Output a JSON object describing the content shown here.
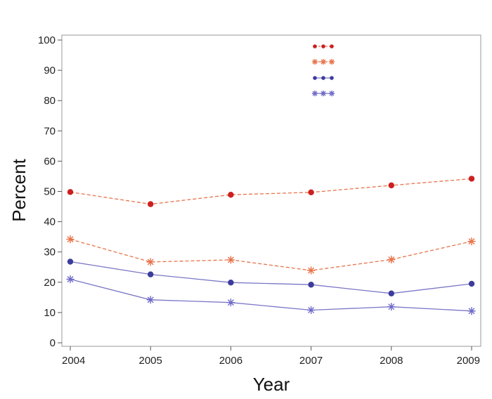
{
  "chart_data": {
    "type": "line",
    "title": "",
    "xlabel": "Year",
    "ylabel": "Percent",
    "x": [
      2004,
      2005,
      2006,
      2007,
      2008,
      2009
    ],
    "xticks": [
      "2004",
      "2005",
      "2006",
      "2007",
      "2008",
      "2009"
    ],
    "yticks": [
      "0",
      "10",
      "20",
      "30",
      "40",
      "50",
      "60",
      "70",
      "80",
      "90",
      "100"
    ],
    "ylim": [
      0,
      100
    ],
    "grid": false,
    "legend_position": "top-center",
    "series": [
      {
        "values": [
          49.8,
          45.8,
          48.9,
          49.7,
          52.0,
          54.2
        ],
        "color": "#cc1f1f",
        "line_color": "#e8734a",
        "dash": "dashed",
        "marker": "circle"
      },
      {
        "values": [
          34.2,
          26.7,
          27.4,
          23.9,
          27.5,
          33.5
        ],
        "color": "#e8734a",
        "line_color": "#e8734a",
        "dash": "dashed",
        "marker": "star"
      },
      {
        "values": [
          26.8,
          22.6,
          19.9,
          19.2,
          16.3,
          19.5
        ],
        "color": "#3c3c9c",
        "line_color": "#7b78c8",
        "dash": "solid",
        "marker": "circle"
      },
      {
        "values": [
          21.0,
          14.2,
          13.3,
          10.8,
          11.9,
          10.5
        ],
        "color": "#6e6ac8",
        "line_color": "#7b78c8",
        "dash": "solid",
        "marker": "star"
      }
    ]
  }
}
